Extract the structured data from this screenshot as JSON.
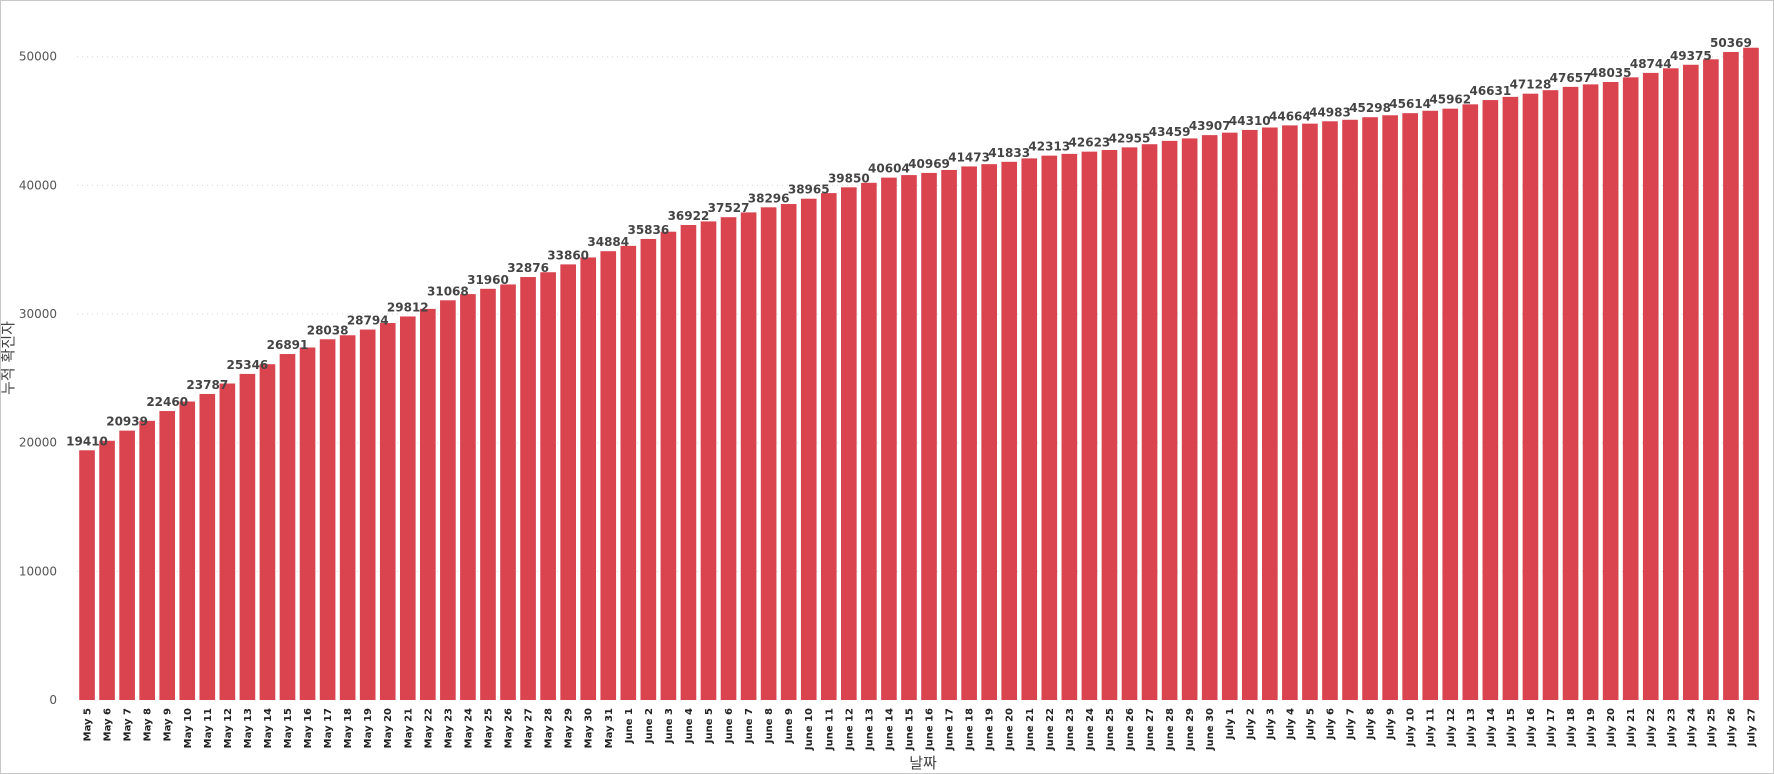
{
  "chart_data": {
    "type": "bar",
    "title": "",
    "xlabel": "날짜",
    "ylabel": "누적 확진자",
    "ylim": [
      0,
      52000
    ],
    "yticks": [
      0,
      10000,
      20000,
      30000,
      40000,
      50000
    ],
    "grid": true,
    "bar_color": "#d9444f",
    "categories": [
      "May 5",
      "May 6",
      "May 7",
      "May 8",
      "May 9",
      "May 10",
      "May 11",
      "May 12",
      "May 13",
      "May 14",
      "May 15",
      "May 16",
      "May 17",
      "May 18",
      "May 19",
      "May 20",
      "May 21",
      "May 22",
      "May 23",
      "May 24",
      "May 25",
      "May 26",
      "May 27",
      "May 28",
      "May 29",
      "May 30",
      "May 31",
      "June 1",
      "June 2",
      "June 3",
      "June 4",
      "June 5",
      "June 6",
      "June 7",
      "June 8",
      "June 9",
      "June 10",
      "June 11",
      "June 12",
      "June 13",
      "June 14",
      "June 15",
      "June 16",
      "June 17",
      "June 18",
      "June 19",
      "June 20",
      "June 21",
      "June 22",
      "June 23",
      "June 24",
      "June 25",
      "June 26",
      "June 27",
      "June 28",
      "June 29",
      "June 30",
      "July 1",
      "July 2",
      "July 3",
      "July 4",
      "July 5",
      "July 6",
      "July 7",
      "July 8",
      "July 9",
      "July 10",
      "July 11",
      "July 12",
      "July 13",
      "July 14",
      "July 15",
      "July 16",
      "July 17",
      "July 18",
      "July 19",
      "July 20",
      "July 21",
      "July 22",
      "July 23",
      "July 24",
      "July 25",
      "July 26",
      "July 27"
    ],
    "values": [
      19410,
      20150,
      20939,
      21700,
      22460,
      23200,
      23787,
      24600,
      25346,
      26100,
      26891,
      27400,
      28038,
      28350,
      28794,
      29300,
      29812,
      30400,
      31068,
      31550,
      31960,
      32300,
      32876,
      33250,
      33860,
      34400,
      34884,
      35300,
      35836,
      36400,
      36922,
      37200,
      37527,
      37900,
      38296,
      38550,
      38965,
      39400,
      39850,
      40200,
      40604,
      40800,
      40969,
      41200,
      41473,
      41650,
      41833,
      42100,
      42313,
      42450,
      42623,
      42750,
      42955,
      43200,
      43459,
      43650,
      43907,
      44100,
      44310,
      44500,
      44664,
      44800,
      44983,
      45100,
      45298,
      45450,
      45614,
      45800,
      45962,
      46300,
      46631,
      46880,
      47128,
      47400,
      47657,
      47850,
      48035,
      48400,
      48744,
      49100,
      49375,
      49800,
      50369,
      50700
    ],
    "data_labels": [
      {
        "index": 0,
        "text": "19410"
      },
      {
        "index": 2,
        "text": "20939"
      },
      {
        "index": 4,
        "text": "22460"
      },
      {
        "index": 6,
        "text": "23787"
      },
      {
        "index": 8,
        "text": "25346"
      },
      {
        "index": 10,
        "text": "26891"
      },
      {
        "index": 12,
        "text": "28038"
      },
      {
        "index": 14,
        "text": "28794"
      },
      {
        "index": 16,
        "text": "29812"
      },
      {
        "index": 18,
        "text": "31068"
      },
      {
        "index": 20,
        "text": "31960"
      },
      {
        "index": 22,
        "text": "32876"
      },
      {
        "index": 24,
        "text": "33860"
      },
      {
        "index": 26,
        "text": "34884"
      },
      {
        "index": 28,
        "text": "35836"
      },
      {
        "index": 30,
        "text": "36922"
      },
      {
        "index": 32,
        "text": "37527"
      },
      {
        "index": 34,
        "text": "38296"
      },
      {
        "index": 36,
        "text": "38965"
      },
      {
        "index": 38,
        "text": "39850"
      },
      {
        "index": 40,
        "text": "40604"
      },
      {
        "index": 42,
        "text": "40969"
      },
      {
        "index": 44,
        "text": "41473"
      },
      {
        "index": 46,
        "text": "41833"
      },
      {
        "index": 48,
        "text": "42313"
      },
      {
        "index": 50,
        "text": "42623"
      },
      {
        "index": 52,
        "text": "42955"
      },
      {
        "index": 54,
        "text": "43459"
      },
      {
        "index": 56,
        "text": "43907"
      },
      {
        "index": 58,
        "text": "44310"
      },
      {
        "index": 60,
        "text": "44664"
      },
      {
        "index": 62,
        "text": "44983"
      },
      {
        "index": 64,
        "text": "45298"
      },
      {
        "index": 66,
        "text": "45614"
      },
      {
        "index": 68,
        "text": "45962"
      },
      {
        "index": 70,
        "text": "46631"
      },
      {
        "index": 72,
        "text": "47128"
      },
      {
        "index": 74,
        "text": "47657"
      },
      {
        "index": 76,
        "text": "48035"
      },
      {
        "index": 78,
        "text": "48744"
      },
      {
        "index": 80,
        "text": "49375"
      },
      {
        "index": 82,
        "text": "50369"
      }
    ]
  }
}
